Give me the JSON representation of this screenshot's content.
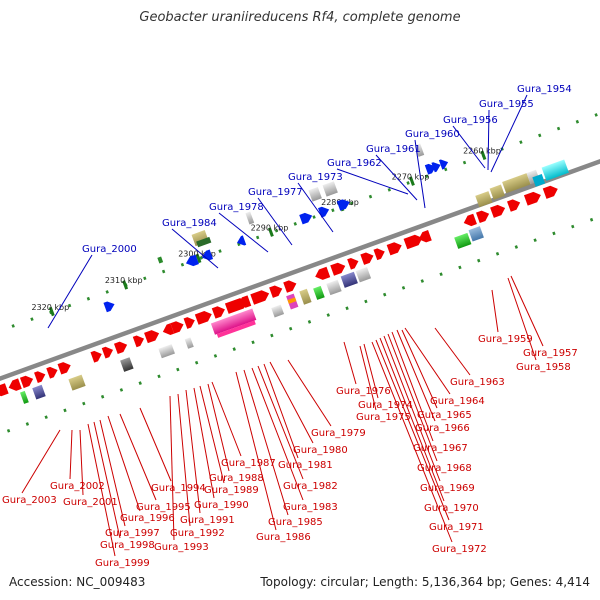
{
  "title": "Geobacter uraniireducens Rf4, complete genome",
  "footer": {
    "accession": "Accession: NC_009483",
    "info": "Topology: circular; Length: 5,136,364 bp; Genes: 4,414"
  },
  "colors": {
    "backbone": "#888888",
    "dots": "#2e8b2e",
    "top_labels": "#0000bb",
    "bottom_labels": "#cc0000",
    "gene_red": "#ee0000",
    "gene_blue": "#0022ee"
  },
  "scale": {
    "ticks": [
      "2260 kbp",
      "2270 kbp",
      "2280 kbp",
      "2290 kbp",
      "2300 kbp",
      "2310 kbp",
      "2320 kbp"
    ]
  },
  "top_labels": [
    "Gura_1954",
    "Gura_1955",
    "Gura_1956",
    "Gura_1960",
    "Gura_1961",
    "Gura_1962",
    "Gura_1973",
    "Gura_1977",
    "Gura_1978",
    "Gura_1984",
    "Gura_2000"
  ],
  "bottom_labels": [
    "Gura_1959",
    "Gura_1957",
    "Gura_1958",
    "Gura_1963",
    "Gura_1964",
    "Gura_1965",
    "Gura_1966",
    "Gura_1967",
    "Gura_1968",
    "Gura_1969",
    "Gura_1970",
    "Gura_1971",
    "Gura_1972",
    "Gura_1974",
    "Gura_1975",
    "Gura_1976",
    "Gura_1979",
    "Gura_1980",
    "Gura_1981",
    "Gura_1982",
    "Gura_1983",
    "Gura_1985",
    "Gura_1986",
    "Gura_1987",
    "Gura_1988",
    "Gura_1989",
    "Gura_1990",
    "Gura_1991",
    "Gura_1992",
    "Gura_1993",
    "Gura_1994",
    "Gura_1995",
    "Gura_1996",
    "Gura_1997",
    "Gura_1998",
    "Gura_1999",
    "Gura_2001",
    "Gura_2002",
    "Gura_2003"
  ]
}
